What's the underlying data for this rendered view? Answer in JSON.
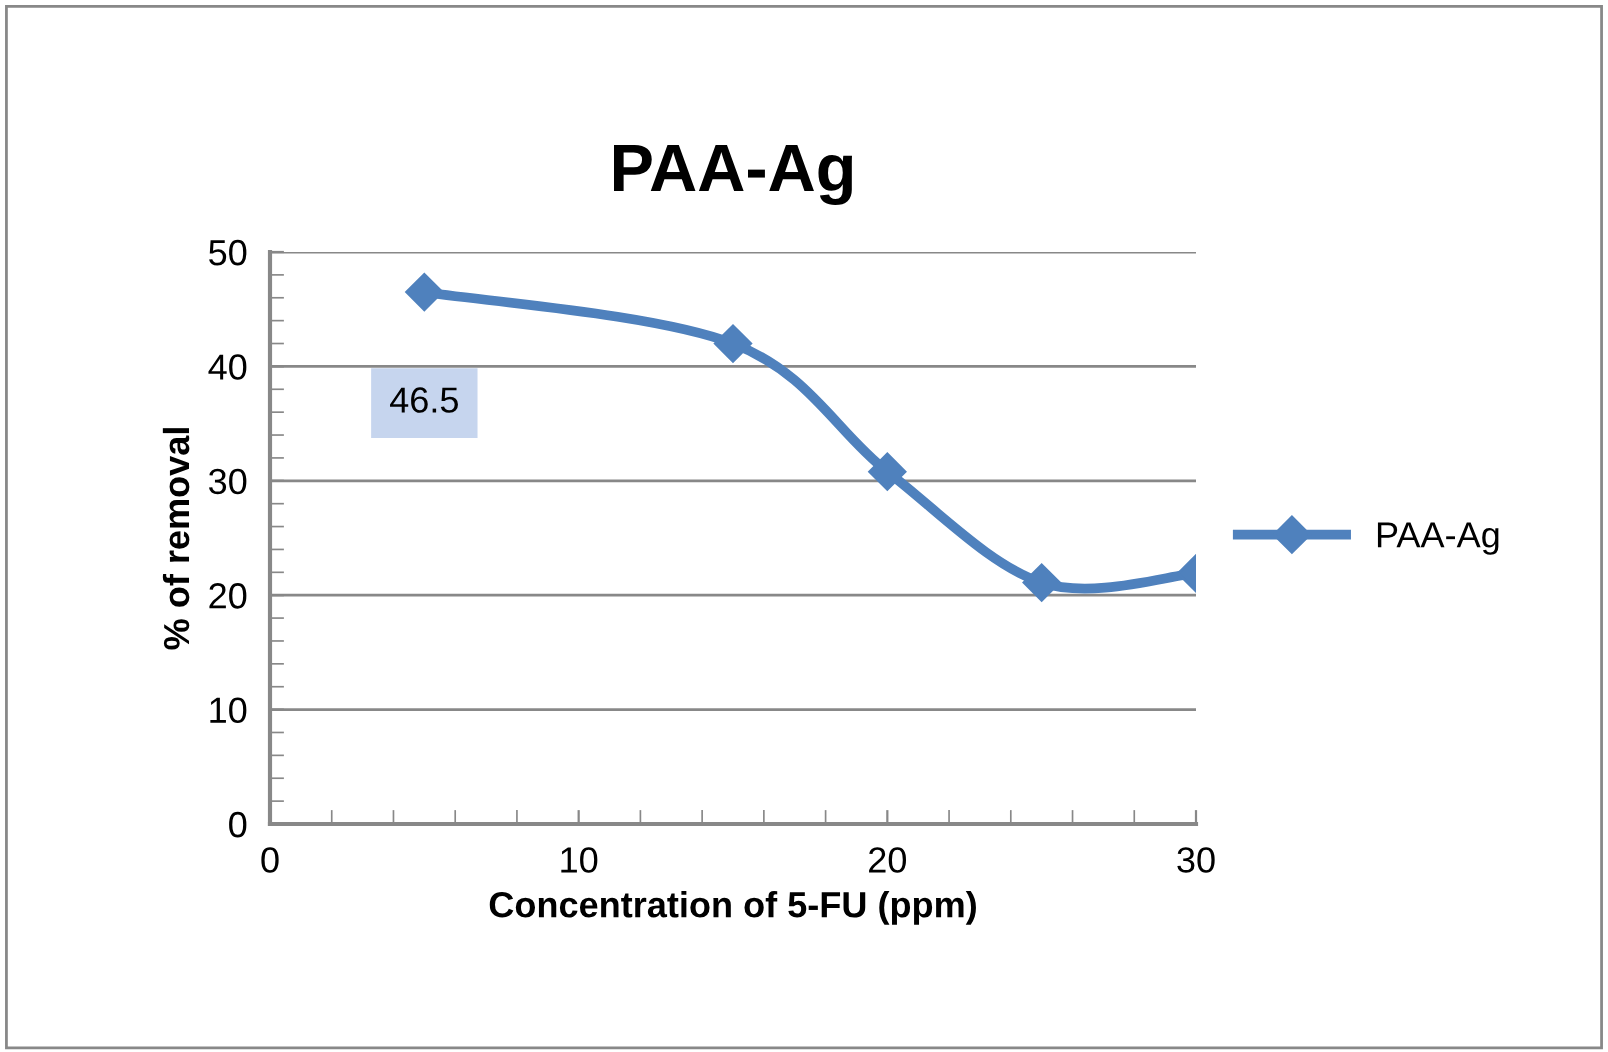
{
  "chart_data": {
    "type": "line",
    "title": "PAA-Ag",
    "xlabel": "Concentration of 5-FU (ppm)",
    "ylabel": "% of removal",
    "x": [
      5,
      15,
      20,
      25,
      30
    ],
    "series": [
      {
        "name": "PAA-Ag",
        "color": "#4f81bd",
        "values": [
          46.5,
          42,
          30.8,
          21.1,
          21.9
        ]
      }
    ],
    "annotations": [
      {
        "text": "46.5",
        "x": 5,
        "y": 46.5
      }
    ],
    "xlim": [
      0,
      30
    ],
    "xticks": [
      0,
      10,
      20,
      30
    ],
    "ylim": [
      0,
      50
    ],
    "yticks": [
      0,
      10,
      20,
      30,
      40,
      50
    ],
    "grid": "y",
    "legend": "right",
    "marker": "diamond",
    "line_style": "solid"
  }
}
